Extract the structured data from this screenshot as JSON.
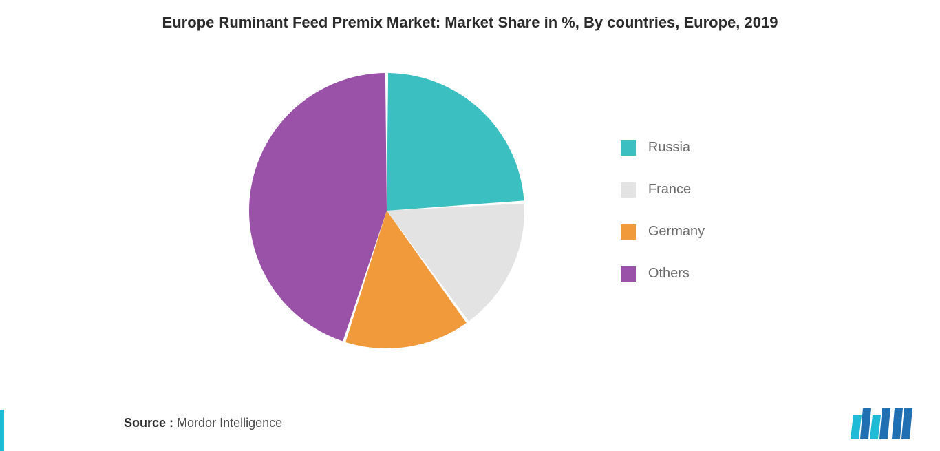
{
  "chart": {
    "type": "pie",
    "title": "Europe Ruminant Feed Premix Market: Market Share in %, By countries, Europe, 2019",
    "title_fontsize": 22,
    "title_color": "#2b2b2b",
    "background_color": "#ffffff",
    "slice_gap_deg": 1.2,
    "series": [
      {
        "label": "Russia",
        "value": 24,
        "color": "#3bbfc1"
      },
      {
        "label": "France",
        "value": 16,
        "color": "#e3e3e3"
      },
      {
        "label": "Germany",
        "value": 15,
        "color": "#f19a3b"
      },
      {
        "label": "Others",
        "value": 45,
        "color": "#9a52a8"
      }
    ],
    "legend": {
      "position": "right",
      "label_fontsize": 20,
      "label_color": "#6b6b6b",
      "swatch_size": 22
    }
  },
  "footer": {
    "source_prefix": "Source :",
    "source_name": "Mordor Intelligence",
    "fontsize": 18
  },
  "branding": {
    "accent_color": "#1fbad6",
    "logo_primary": "#1f6fb2",
    "logo_secondary": "#1fbad6"
  }
}
